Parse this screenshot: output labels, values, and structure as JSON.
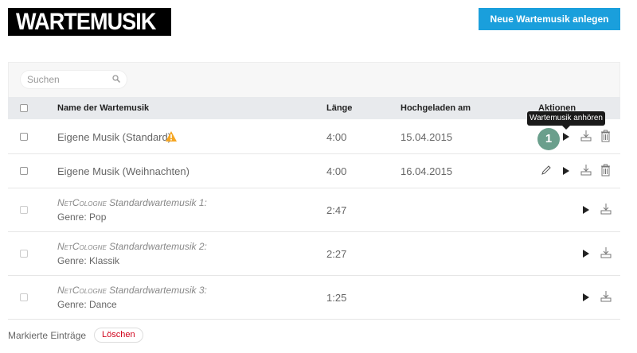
{
  "logo": "WARTEMUSIK",
  "new_button": "Neue Wartemusik anlegen",
  "search": {
    "placeholder": "Suchen"
  },
  "columns": {
    "name": "Name der Wartemusik",
    "length": "Länge",
    "uploaded": "Hochgeladen am",
    "actions": "Aktionen"
  },
  "rows": [
    {
      "name": "Eigene Musik (Standard)",
      "warning": true,
      "length": "4:00",
      "date": "15.04.2015"
    },
    {
      "name": "Eigene Musik (Weihnachten)",
      "length": "4:00",
      "date": "16.04.2015"
    },
    {
      "brand": "NetCologne",
      "title": " Standardwartemusik 1:",
      "genre": "Genre: Pop",
      "length": "2:47"
    },
    {
      "brand": "NetCologne",
      "title": " Standardwartemusik 2:",
      "genre": "Genre: Klassik",
      "length": "2:27"
    },
    {
      "brand": "NetCologne",
      "title": " Standardwartemusik 3:",
      "genre": "Genre: Dance",
      "length": "1:25"
    }
  ],
  "tooltip": "Wartemusik anhören",
  "step_badge": "1",
  "footer": {
    "label": "Markierte Einträge",
    "delete": "Löschen"
  },
  "colors": {
    "accent": "#1a9fdc",
    "badge": "#6a9f8c",
    "danger": "#d0021b",
    "warning": "#f5a623"
  }
}
